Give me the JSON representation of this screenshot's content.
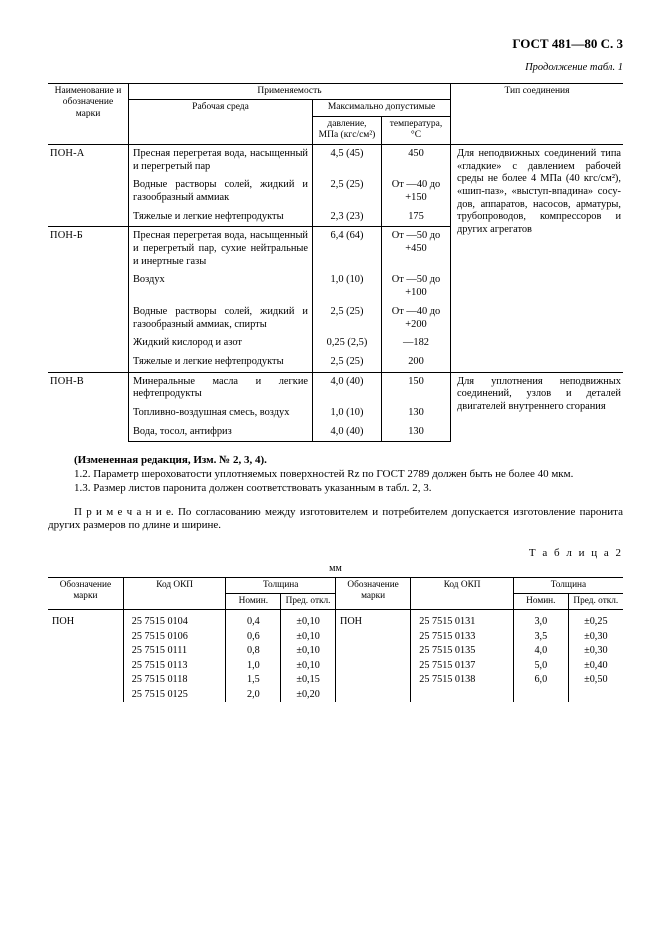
{
  "header": {
    "right": "ГОСТ 481—80 С. 3",
    "continuation": "Продолжение табл. 1"
  },
  "t1": {
    "head": {
      "applic": "Применяемость",
      "marka": "Наименование и обозначение марки",
      "media": "Рабочая среда",
      "maxperm": "Максимально допустимые",
      "pressure": "давление, МПа (кгс/см²)",
      "temp": "температура, °С",
      "conn": "Тип соединения"
    },
    "groups": [
      {
        "marka": "ПОН-А",
        "conn": "Для неподвижных соедине­ний типа «гладкие» с давле­нием рабочей среды не более 4 МПа (40 кгс/см²), «шип-паз», «выступ-впадина» сосу­дов, аппаратов, насосов, арма­туры, трубопроводов, компрес­соров и других агрегатов",
        "rows": [
          {
            "media": "Пресная перегретая вода, насыщенный и перегретый пар",
            "p": "4,5 (45)",
            "t": "450"
          },
          {
            "media": "Водные растворы солей, жидкий и газообразный ам­миак",
            "p": "2,5 (25)",
            "t": "От —40 до +150"
          },
          {
            "media": "Тяжелые и легкие нефте­продукты",
            "p": "2,3 (23)",
            "t": "175"
          }
        ]
      },
      {
        "marka": "ПОН-Б",
        "conn": "",
        "rows": [
          {
            "media": "Пресная перегретая вода, насыщенный и перегретый пар, сухие нейтральные и инертные газы",
            "p": "6,4 (64)",
            "t": "От —50 до +450"
          },
          {
            "media": "Воздух",
            "p": "1,0 (10)",
            "t": "От —50 до +100"
          },
          {
            "media": "Водные растворы солей, жидкий и газообразный ам­миак, спирты",
            "p": "2,5 (25)",
            "t": "От —40 до +200"
          },
          {
            "media": "Жидкий кислород и азот",
            "p": "0,25 (2,5)",
            "t": "—182"
          },
          {
            "media": "Тяжелые и легкие нефте­продукты",
            "p": "2,5 (25)",
            "t": "200"
          }
        ]
      },
      {
        "marka": "ПОН-В",
        "conn": "Для уплотнения неподвиж­ных соединений, узлов и дета­лей двигателей внутреннего сгорания",
        "rows": [
          {
            "media": "Минеральные масла и лег­кие нефтепродукты",
            "p": "4,0 (40)",
            "t": "150"
          },
          {
            "media": "Топливно-воздушная смесь, воздух",
            "p": "1,0 (10)",
            "t": "130"
          },
          {
            "media": "Вода, тосол, антифриз",
            "p": "4,0 (40)",
            "t": "130"
          }
        ]
      }
    ]
  },
  "mid": {
    "l0": "(Измененная редакция, Изм. № 2, 3, 4).",
    "l1": "1.2. Параметр шероховатости уплотняемых поверхностей Rz по ГОСТ 2789 должен быть не более 40 мкм.",
    "l2": "1.3. Размер листов паронита должен соответствовать указанным в табл. 2, 3.",
    "note": "П р и м е ч а н и е.  По согласованию между изготовителем и потребителем допускается изготовление па­ронита других размеров по длине и ширине."
  },
  "t2label": "Т а б л и ц а 2",
  "mm": "мм",
  "t2": {
    "head": {
      "marka": "Обозначение марки",
      "okp": "Код ОКП",
      "thick": "Толщина",
      "nom": "Номин.",
      "tol": "Пред. откл."
    },
    "left": {
      "marka": "ПОН",
      "rows": [
        {
          "code": "25 7515 0104",
          "nom": "0,4",
          "tol": "±0,10"
        },
        {
          "code": "25 7515 0106",
          "nom": "0,6",
          "tol": "±0,10"
        },
        {
          "code": "25 7515 0111",
          "nom": "0,8",
          "tol": "±0,10"
        },
        {
          "code": "25 7515 0113",
          "nom": "1,0",
          "tol": "±0,10"
        },
        {
          "code": "25 7515 0118",
          "nom": "1,5",
          "tol": "±0,15"
        },
        {
          "code": "25 7515 0125",
          "nom": "2,0",
          "tol": "±0,20"
        }
      ]
    },
    "right": {
      "marka": "ПОН",
      "rows": [
        {
          "code": "25 7515 0131",
          "nom": "3,0",
          "tol": "±0,25"
        },
        {
          "code": "25 7515 0133",
          "nom": "3,5",
          "tol": "±0,30"
        },
        {
          "code": "25 7515 0135",
          "nom": "4,0",
          "tol": "±0,30"
        },
        {
          "code": "25 7515 0137",
          "nom": "5,0",
          "tol": "±0,40"
        },
        {
          "code": "25 7515 0138",
          "nom": "6,0",
          "tol": "±0,50"
        }
      ]
    }
  }
}
